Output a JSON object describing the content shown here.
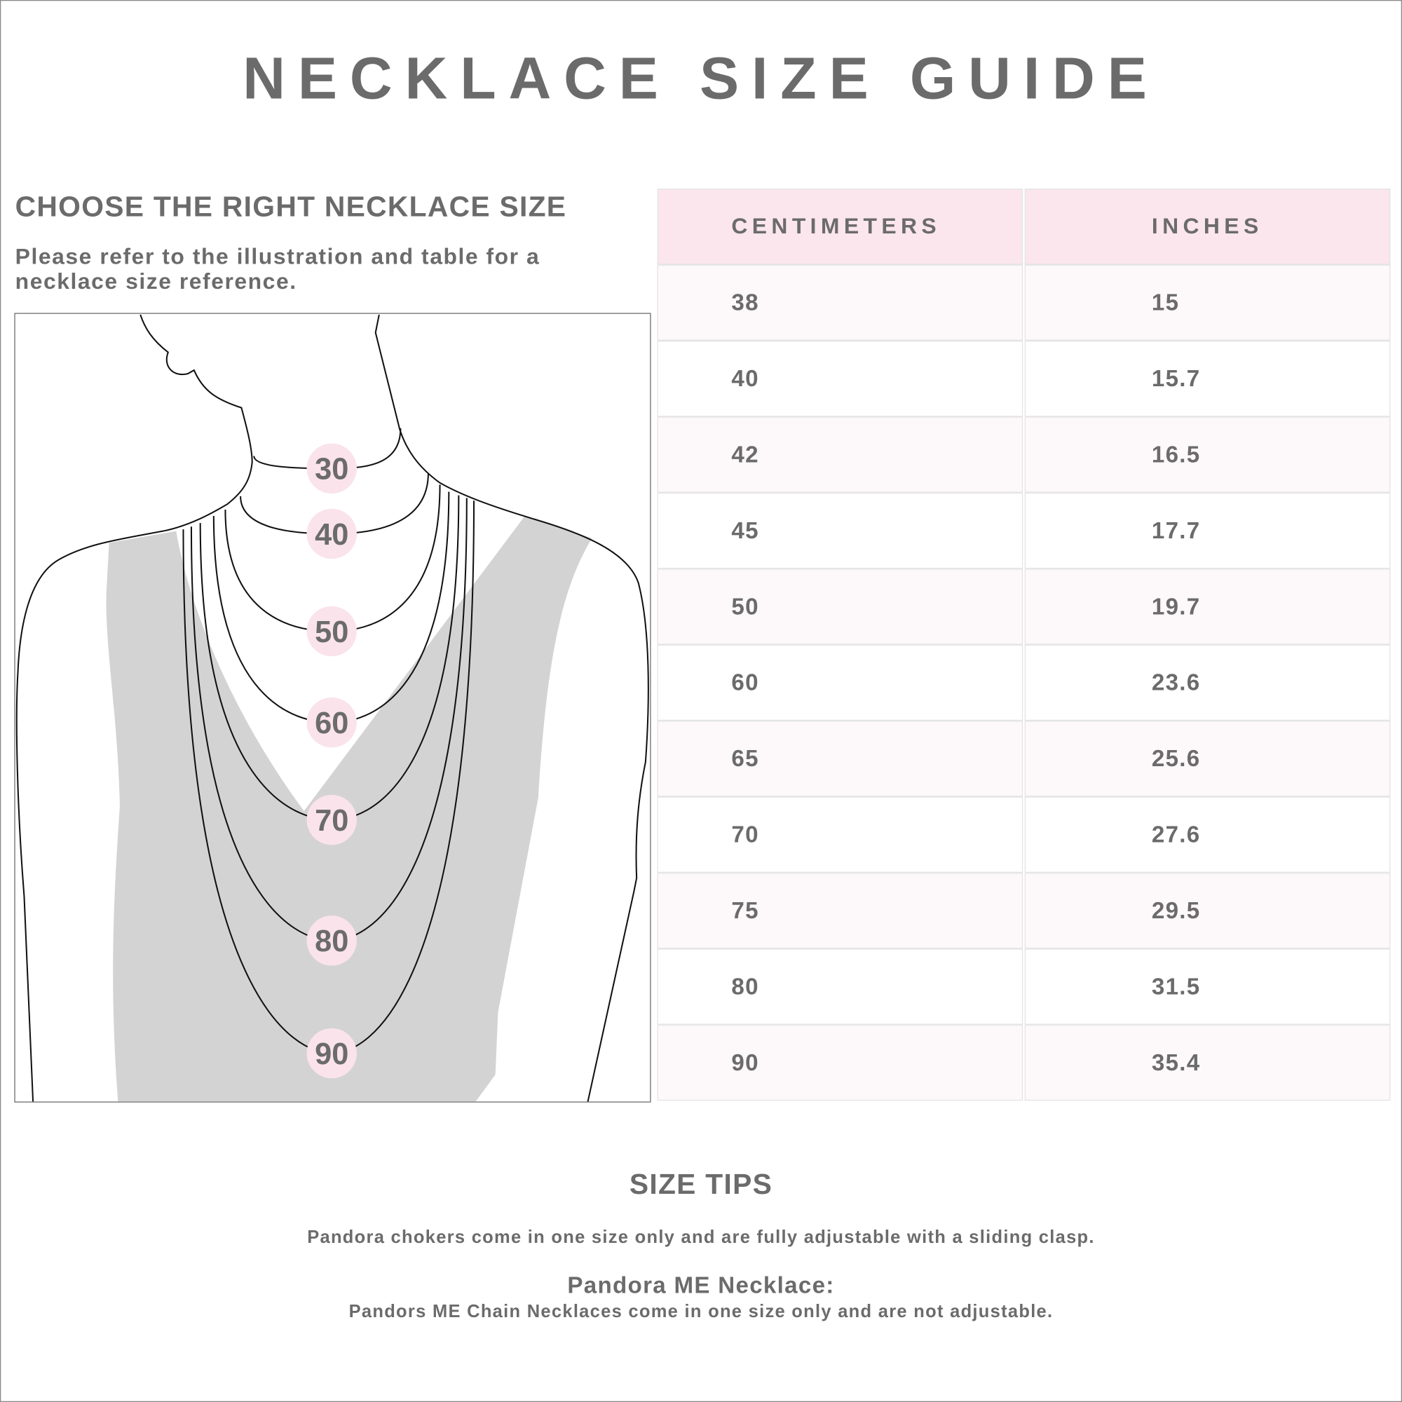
{
  "title": "NECKLACE SIZE GUIDE",
  "left": {
    "heading": "CHOOSE THE RIGHT NECKLACE SIZE",
    "intro": "Please refer to the illustration and table for a necklace size reference.",
    "necklace_labels": [
      "30",
      "40",
      "50",
      "60",
      "70",
      "80",
      "90"
    ]
  },
  "table": {
    "headers": [
      "CENTIMETERS",
      "INCHES"
    ],
    "rows": [
      [
        "38",
        "15"
      ],
      [
        "40",
        "15.7"
      ],
      [
        "42",
        "16.5"
      ],
      [
        "45",
        "17.7"
      ],
      [
        "50",
        "19.7"
      ],
      [
        "60",
        "23.6"
      ],
      [
        "65",
        "25.6"
      ],
      [
        "70",
        "27.6"
      ],
      [
        "75",
        "29.5"
      ],
      [
        "80",
        "31.5"
      ],
      [
        "90",
        "35.4"
      ]
    ]
  },
  "tips": {
    "heading": "SIZE TIPS",
    "chokers": "Pandora chokers come in one size only and are fully adjustable with a sliding clasp.",
    "me_heading": "Pandora ME Necklace:",
    "me_text": "Pandors ME Chain Necklaces come in one size only and are not adjustable."
  },
  "colors": {
    "text": "#6b6b6b",
    "header_bg": "#fae6ec",
    "row_alt_bg": "#fdf8f9",
    "badge": "#fae3ea",
    "shirt": "#d3d3d3"
  }
}
